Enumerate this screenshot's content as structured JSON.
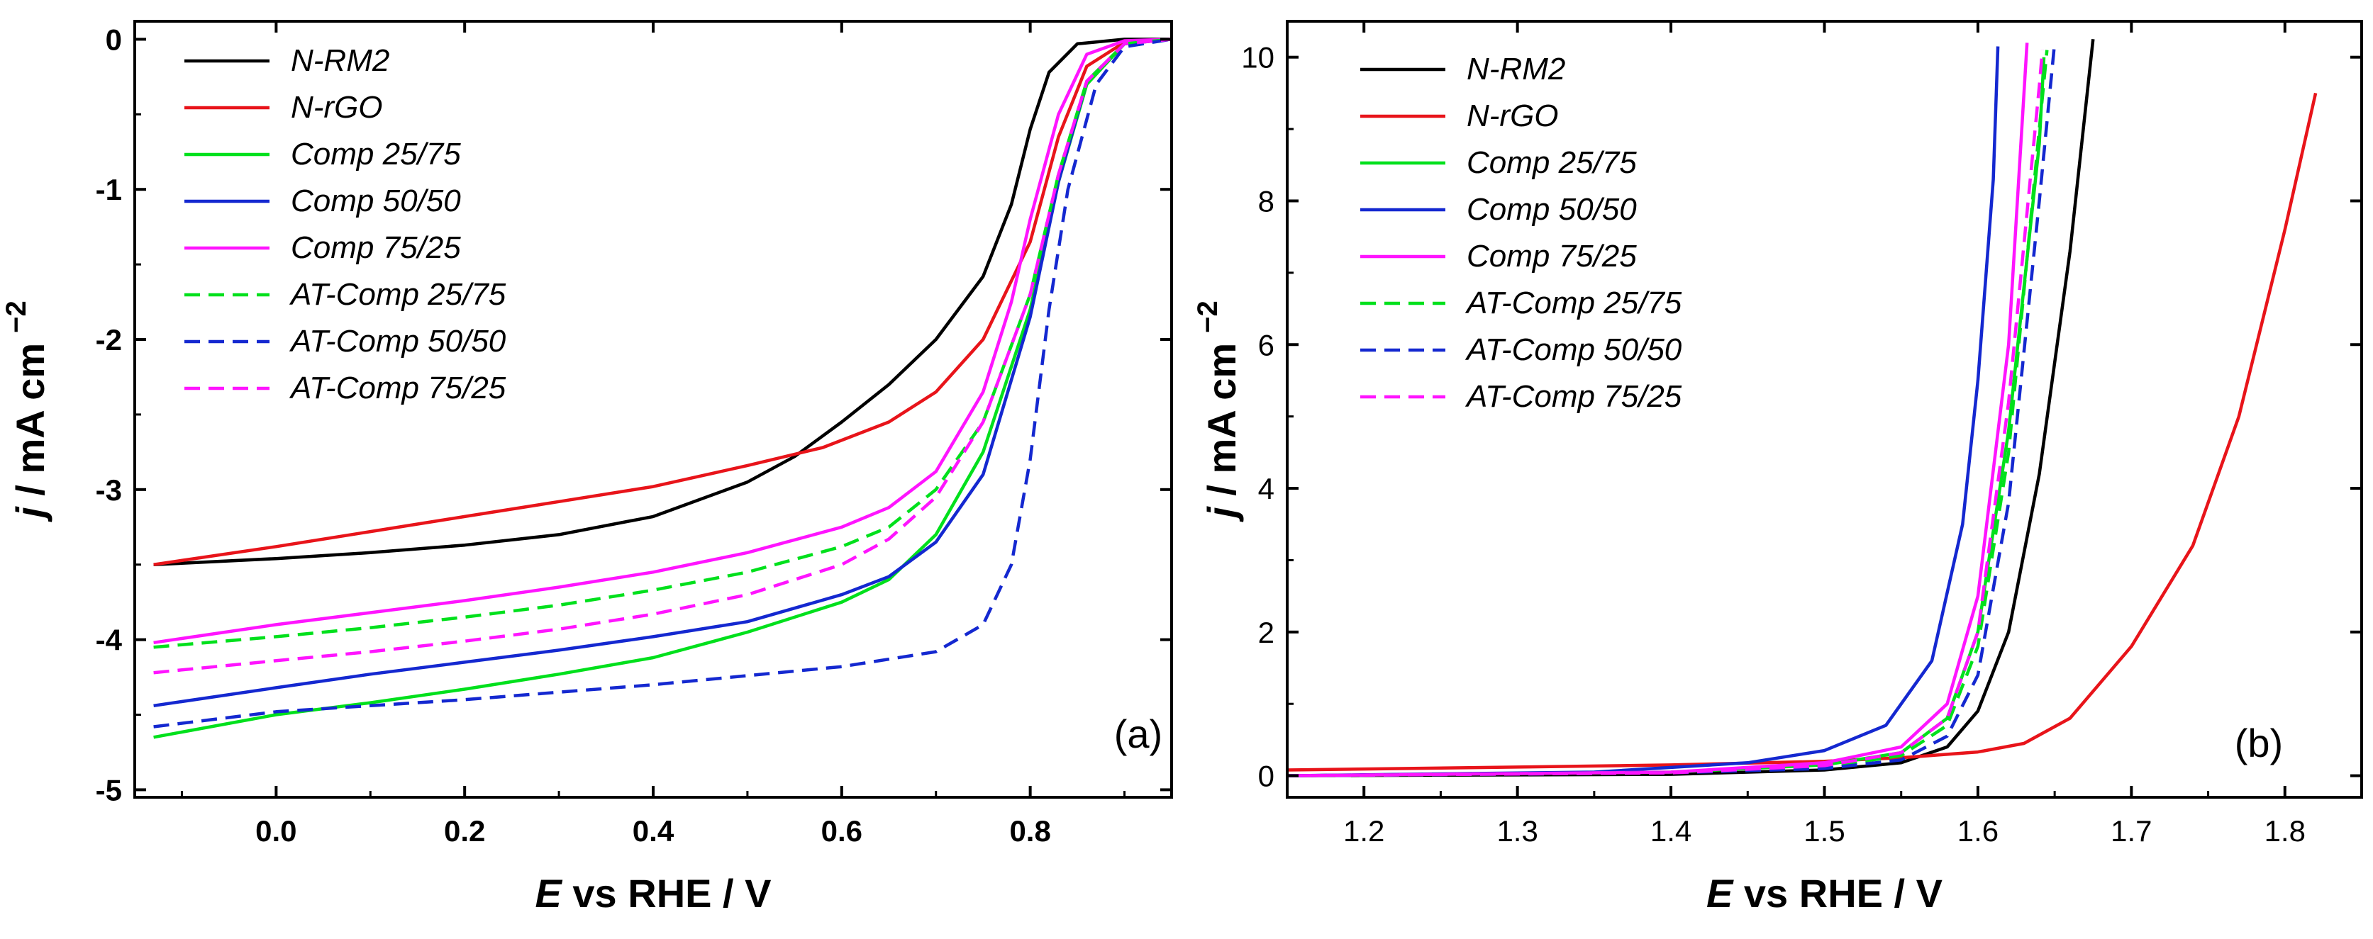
{
  "chart_data": [
    {
      "type": "line",
      "panel_label": "(a)",
      "xlabel_italic": "E",
      "xlabel_rest": " vs RHE / V",
      "ylabel_italic": "j",
      "ylabel_rest": " / mA cm",
      "ylabel_sup": "−2",
      "xlim": [
        -0.15,
        0.95
      ],
      "ylim": [
        -5.05,
        0.12
      ],
      "xticks": [
        0.0,
        0.2,
        0.4,
        0.6,
        0.8
      ],
      "xtick_labels": [
        "0.0",
        "0.2",
        "0.4",
        "0.6",
        "0.8"
      ],
      "yticks": [
        0,
        -1,
        -2,
        -3,
        -4,
        -5
      ],
      "ytick_labels": [
        "0",
        "-1",
        "-2",
        "-3",
        "-4",
        "-5"
      ],
      "legend_position": "top-left",
      "series": [
        {
          "name": "N-RM2",
          "color": "#000000",
          "dash": "solid",
          "points": [
            [
              -0.13,
              -3.5
            ],
            [
              0.0,
              -3.46
            ],
            [
              0.1,
              -3.42
            ],
            [
              0.2,
              -3.37
            ],
            [
              0.3,
              -3.3
            ],
            [
              0.4,
              -3.18
            ],
            [
              0.5,
              -2.95
            ],
            [
              0.55,
              -2.78
            ],
            [
              0.6,
              -2.55
            ],
            [
              0.65,
              -2.3
            ],
            [
              0.7,
              -2.0
            ],
            [
              0.75,
              -1.58
            ],
            [
              0.78,
              -1.1
            ],
            [
              0.8,
              -0.6
            ],
            [
              0.82,
              -0.22
            ],
            [
              0.85,
              -0.03
            ],
            [
              0.9,
              0.0
            ],
            [
              0.95,
              0.0
            ]
          ]
        },
        {
          "name": "N-rGO",
          "color": "#e8141a",
          "dash": "solid",
          "points": [
            [
              -0.13,
              -3.5
            ],
            [
              0.0,
              -3.38
            ],
            [
              0.1,
              -3.28
            ],
            [
              0.2,
              -3.18
            ],
            [
              0.3,
              -3.08
            ],
            [
              0.4,
              -2.98
            ],
            [
              0.5,
              -2.84
            ],
            [
              0.58,
              -2.72
            ],
            [
              0.65,
              -2.55
            ],
            [
              0.7,
              -2.35
            ],
            [
              0.75,
              -2.0
            ],
            [
              0.8,
              -1.35
            ],
            [
              0.83,
              -0.65
            ],
            [
              0.86,
              -0.18
            ],
            [
              0.9,
              -0.02
            ],
            [
              0.95,
              0.0
            ]
          ]
        },
        {
          "name": "Comp 25/75",
          "color": "#00e01c",
          "dash": "solid",
          "points": [
            [
              -0.13,
              -4.65
            ],
            [
              0.0,
              -4.5
            ],
            [
              0.1,
              -4.42
            ],
            [
              0.2,
              -4.33
            ],
            [
              0.3,
              -4.23
            ],
            [
              0.4,
              -4.12
            ],
            [
              0.5,
              -3.95
            ],
            [
              0.6,
              -3.75
            ],
            [
              0.65,
              -3.6
            ],
            [
              0.7,
              -3.3
            ],
            [
              0.75,
              -2.75
            ],
            [
              0.8,
              -1.8
            ],
            [
              0.83,
              -0.95
            ],
            [
              0.86,
              -0.3
            ],
            [
              0.9,
              -0.03
            ],
            [
              0.95,
              0.0
            ]
          ]
        },
        {
          "name": "Comp 50/50",
          "color": "#1428d0",
          "dash": "solid",
          "points": [
            [
              -0.13,
              -4.44
            ],
            [
              0.0,
              -4.32
            ],
            [
              0.1,
              -4.23
            ],
            [
              0.2,
              -4.15
            ],
            [
              0.3,
              -4.07
            ],
            [
              0.4,
              -3.98
            ],
            [
              0.5,
              -3.88
            ],
            [
              0.6,
              -3.7
            ],
            [
              0.65,
              -3.58
            ],
            [
              0.7,
              -3.35
            ],
            [
              0.75,
              -2.9
            ],
            [
              0.8,
              -1.85
            ],
            [
              0.83,
              -0.95
            ],
            [
              0.86,
              -0.28
            ],
            [
              0.9,
              -0.03
            ],
            [
              0.95,
              0.0
            ]
          ]
        },
        {
          "name": "Comp 75/25",
          "color": "#ff14ff",
          "dash": "solid",
          "points": [
            [
              -0.13,
              -4.02
            ],
            [
              0.0,
              -3.9
            ],
            [
              0.1,
              -3.82
            ],
            [
              0.2,
              -3.74
            ],
            [
              0.3,
              -3.65
            ],
            [
              0.4,
              -3.55
            ],
            [
              0.5,
              -3.42
            ],
            [
              0.6,
              -3.25
            ],
            [
              0.65,
              -3.12
            ],
            [
              0.7,
              -2.88
            ],
            [
              0.75,
              -2.35
            ],
            [
              0.78,
              -1.75
            ],
            [
              0.8,
              -1.2
            ],
            [
              0.83,
              -0.5
            ],
            [
              0.86,
              -0.1
            ],
            [
              0.9,
              -0.01
            ],
            [
              0.95,
              0.0
            ]
          ]
        },
        {
          "name": "AT-Comp 25/75",
          "color": "#00e01c",
          "dash": "dashed",
          "points": [
            [
              -0.13,
              -4.05
            ],
            [
              0.0,
              -3.98
            ],
            [
              0.1,
              -3.92
            ],
            [
              0.2,
              -3.85
            ],
            [
              0.3,
              -3.77
            ],
            [
              0.4,
              -3.67
            ],
            [
              0.5,
              -3.55
            ],
            [
              0.6,
              -3.38
            ],
            [
              0.65,
              -3.25
            ],
            [
              0.7,
              -3.0
            ],
            [
              0.75,
              -2.55
            ],
            [
              0.8,
              -1.7
            ],
            [
              0.83,
              -0.9
            ],
            [
              0.86,
              -0.28
            ],
            [
              0.9,
              -0.03
            ],
            [
              0.95,
              0.0
            ]
          ]
        },
        {
          "name": "AT-Comp 50/50",
          "color": "#1428d0",
          "dash": "dashed",
          "points": [
            [
              -0.13,
              -4.58
            ],
            [
              0.0,
              -4.48
            ],
            [
              0.1,
              -4.44
            ],
            [
              0.2,
              -4.4
            ],
            [
              0.3,
              -4.35
            ],
            [
              0.4,
              -4.3
            ],
            [
              0.5,
              -4.24
            ],
            [
              0.6,
              -4.18
            ],
            [
              0.7,
              -4.08
            ],
            [
              0.75,
              -3.9
            ],
            [
              0.78,
              -3.5
            ],
            [
              0.8,
              -2.8
            ],
            [
              0.82,
              -1.8
            ],
            [
              0.84,
              -1.0
            ],
            [
              0.87,
              -0.3
            ],
            [
              0.9,
              -0.05
            ],
            [
              0.95,
              0.0
            ]
          ]
        },
        {
          "name": "AT-Comp 75/25",
          "color": "#ff14ff",
          "dash": "dashed",
          "points": [
            [
              -0.13,
              -4.22
            ],
            [
              0.0,
              -4.14
            ],
            [
              0.1,
              -4.08
            ],
            [
              0.2,
              -4.01
            ],
            [
              0.3,
              -3.93
            ],
            [
              0.4,
              -3.83
            ],
            [
              0.5,
              -3.7
            ],
            [
              0.6,
              -3.5
            ],
            [
              0.65,
              -3.33
            ],
            [
              0.7,
              -3.05
            ],
            [
              0.75,
              -2.55
            ],
            [
              0.8,
              -1.7
            ],
            [
              0.83,
              -0.9
            ],
            [
              0.86,
              -0.28
            ],
            [
              0.9,
              -0.03
            ],
            [
              0.95,
              0.0
            ]
          ]
        }
      ]
    },
    {
      "type": "line",
      "panel_label": "(b)",
      "xlabel_italic": "E",
      "xlabel_rest": " vs RHE / V",
      "ylabel_italic": "j",
      "ylabel_rest": " / mA cm",
      "ylabel_sup": "−2",
      "xlim": [
        1.15,
        1.85
      ],
      "ylim": [
        -0.3,
        10.5
      ],
      "xticks": [
        1.2,
        1.3,
        1.4,
        1.5,
        1.6,
        1.7,
        1.8
      ],
      "xtick_labels": [
        "1.2",
        "1.3",
        "1.4",
        "1.5",
        "1.6",
        "1.7",
        "1.8"
      ],
      "yticks": [
        0,
        2,
        4,
        6,
        8,
        10
      ],
      "ytick_labels": [
        "0",
        "2",
        "4",
        "6",
        "8",
        "10"
      ],
      "legend_position": "top-left",
      "series": [
        {
          "name": "N-RM2",
          "color": "#000000",
          "dash": "solid",
          "points": [
            [
              1.15,
              0.0
            ],
            [
              1.4,
              0.02
            ],
            [
              1.5,
              0.08
            ],
            [
              1.55,
              0.18
            ],
            [
              1.58,
              0.4
            ],
            [
              1.6,
              0.9
            ],
            [
              1.62,
              2.0
            ],
            [
              1.64,
              4.2
            ],
            [
              1.66,
              7.3
            ],
            [
              1.675,
              10.25
            ]
          ]
        },
        {
          "name": "N-rGO",
          "color": "#e8141a",
          "dash": "solid",
          "points": [
            [
              1.15,
              0.08
            ],
            [
              1.3,
              0.12
            ],
            [
              1.4,
              0.15
            ],
            [
              1.5,
              0.2
            ],
            [
              1.55,
              0.25
            ],
            [
              1.6,
              0.33
            ],
            [
              1.63,
              0.45
            ],
            [
              1.66,
              0.8
            ],
            [
              1.7,
              1.8
            ],
            [
              1.74,
              3.2
            ],
            [
              1.77,
              5.0
            ],
            [
              1.8,
              7.6
            ],
            [
              1.82,
              9.5
            ]
          ]
        },
        {
          "name": "Comp 25/75",
          "color": "#00e01c",
          "dash": "solid",
          "points": [
            [
              1.15,
              0.0
            ],
            [
              1.4,
              0.05
            ],
            [
              1.5,
              0.15
            ],
            [
              1.55,
              0.32
            ],
            [
              1.58,
              0.8
            ],
            [
              1.6,
              2.0
            ],
            [
              1.62,
              4.8
            ],
            [
              1.64,
              8.8
            ],
            [
              1.643,
              10.0
            ]
          ]
        },
        {
          "name": "Comp 50/50",
          "color": "#1428d0",
          "dash": "solid",
          "points": [
            [
              1.15,
              0.0
            ],
            [
              1.35,
              0.05
            ],
            [
              1.45,
              0.18
            ],
            [
              1.5,
              0.35
            ],
            [
              1.54,
              0.7
            ],
            [
              1.57,
              1.6
            ],
            [
              1.59,
              3.5
            ],
            [
              1.6,
              5.5
            ],
            [
              1.61,
              8.3
            ],
            [
              1.613,
              10.15
            ]
          ]
        },
        {
          "name": "Comp 75/25",
          "color": "#ff14ff",
          "dash": "solid",
          "points": [
            [
              1.15,
              0.0
            ],
            [
              1.4,
              0.05
            ],
            [
              1.5,
              0.18
            ],
            [
              1.55,
              0.4
            ],
            [
              1.58,
              1.0
            ],
            [
              1.6,
              2.5
            ],
            [
              1.62,
              6.0
            ],
            [
              1.632,
              10.2
            ]
          ]
        },
        {
          "name": "AT-Comp 25/75",
          "color": "#00e01c",
          "dash": "dashed",
          "points": [
            [
              1.15,
              0.0
            ],
            [
              1.4,
              0.04
            ],
            [
              1.5,
              0.12
            ],
            [
              1.55,
              0.28
            ],
            [
              1.58,
              0.7
            ],
            [
              1.6,
              1.8
            ],
            [
              1.62,
              4.5
            ],
            [
              1.64,
              9.0
            ],
            [
              1.645,
              10.1
            ]
          ]
        },
        {
          "name": "AT-Comp 50/50",
          "color": "#1428d0",
          "dash": "dashed",
          "points": [
            [
              1.15,
              0.0
            ],
            [
              1.4,
              0.04
            ],
            [
              1.5,
              0.1
            ],
            [
              1.55,
              0.22
            ],
            [
              1.58,
              0.55
            ],
            [
              1.6,
              1.4
            ],
            [
              1.62,
              3.8
            ],
            [
              1.64,
              8.0
            ],
            [
              1.65,
              10.2
            ]
          ]
        },
        {
          "name": "AT-Comp 75/25",
          "color": "#ff14ff",
          "dash": "dashed",
          "points": [
            [
              1.15,
              0.0
            ],
            [
              1.4,
              0.04
            ],
            [
              1.5,
              0.14
            ],
            [
              1.55,
              0.32
            ],
            [
              1.58,
              0.8
            ],
            [
              1.6,
              2.0
            ],
            [
              1.62,
              5.2
            ],
            [
              1.64,
              9.6
            ],
            [
              1.642,
              10.1
            ]
          ]
        }
      ]
    }
  ]
}
